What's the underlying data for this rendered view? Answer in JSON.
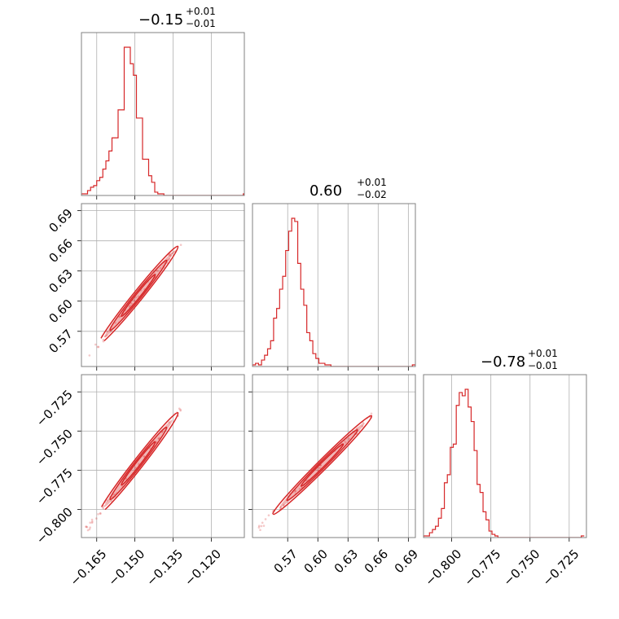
{
  "chart_data": {
    "type": "corner",
    "color": "#d62728",
    "grid": true,
    "parameters": [
      {
        "title": {
          "value": "−0.15",
          "upper": "+0.01",
          "lower": "−0.01"
        },
        "range": [
          -0.171,
          -0.107
        ],
        "ticks": [
          -0.165,
          -0.15,
          -0.135,
          -0.12
        ],
        "tick_labels": [
          "−0.165",
          "−0.150",
          "−0.135",
          "−0.120"
        ],
        "hist": {
          "start": -0.171,
          "bin_width": 0.0012,
          "counts": [
            1,
            1,
            3,
            5,
            6,
            9,
            11,
            16,
            21,
            27,
            35,
            35,
            52,
            52,
            90,
            90,
            80,
            73,
            47,
            47,
            22,
            22,
            12,
            8,
            2,
            1,
            1,
            0,
            0,
            0,
            0,
            0,
            0,
            0,
            0,
            0,
            0,
            0,
            0,
            0,
            0,
            0,
            0,
            0,
            0,
            0,
            0,
            0,
            0,
            0,
            0,
            0,
            0,
            1
          ]
        }
      },
      {
        "title": {
          "value": "0.60",
          "upper": "+0.01",
          "lower": "−0.02"
        },
        "range": [
          0.535,
          0.697
        ],
        "ticks": [
          0.57,
          0.6,
          0.63,
          0.66,
          0.69
        ],
        "tick_labels": [
          "0.57",
          "0.60",
          "0.63",
          "0.66",
          "0.69"
        ],
        "hist": {
          "start": 0.535,
          "bin_width": 0.003,
          "counts": [
            1,
            2,
            1,
            4,
            7,
            11,
            16,
            30,
            36,
            48,
            56,
            72,
            84,
            92,
            90,
            64,
            48,
            38,
            21,
            16,
            8,
            5,
            2,
            2,
            1,
            1,
            0,
            0,
            0,
            0,
            0,
            0,
            0,
            0,
            0,
            0,
            0,
            0,
            0,
            0,
            0,
            0,
            0,
            0,
            0,
            0,
            0,
            0,
            0,
            0,
            0,
            0,
            0,
            1
          ]
        }
      },
      {
        "title": {
          "value": "−0.78",
          "upper": "+0.01",
          "lower": "−0.01"
        },
        "range": [
          -0.818,
          -0.714
        ],
        "ticks": [
          -0.8,
          -0.775,
          -0.75,
          -0.725
        ],
        "tick_labels": [
          "−0.800",
          "−0.775",
          "−0.750",
          "−0.725"
        ],
        "hist": {
          "start": -0.818,
          "bin_width": 0.0019,
          "counts": [
            1,
            1,
            3,
            5,
            7,
            12,
            18,
            34,
            39,
            56,
            58,
            82,
            90,
            88,
            92,
            81,
            72,
            54,
            33,
            28,
            16,
            11,
            4,
            2,
            1,
            0,
            0,
            0,
            0,
            0,
            0,
            0,
            0,
            0,
            0,
            0,
            0,
            0,
            0,
            0,
            0,
            0,
            0,
            0,
            0,
            0,
            0,
            0,
            0,
            0,
            0,
            0,
            0,
            1
          ]
        }
      }
    ],
    "pairs": [
      {
        "row": 1,
        "col": 0,
        "line": [
          [
            -0.169,
            0.542
          ],
          [
            -0.132,
            0.658
          ]
        ],
        "width": 0.004
      },
      {
        "row": 2,
        "col": 0,
        "line": [
          [
            -0.169,
            -0.813
          ],
          [
            -0.132,
            -0.736
          ]
        ],
        "width": 0.004
      },
      {
        "row": 2,
        "col": 1,
        "line": [
          [
            0.54,
            -0.813
          ],
          [
            0.657,
            -0.738
          ]
        ],
        "width": 0.006
      }
    ]
  }
}
